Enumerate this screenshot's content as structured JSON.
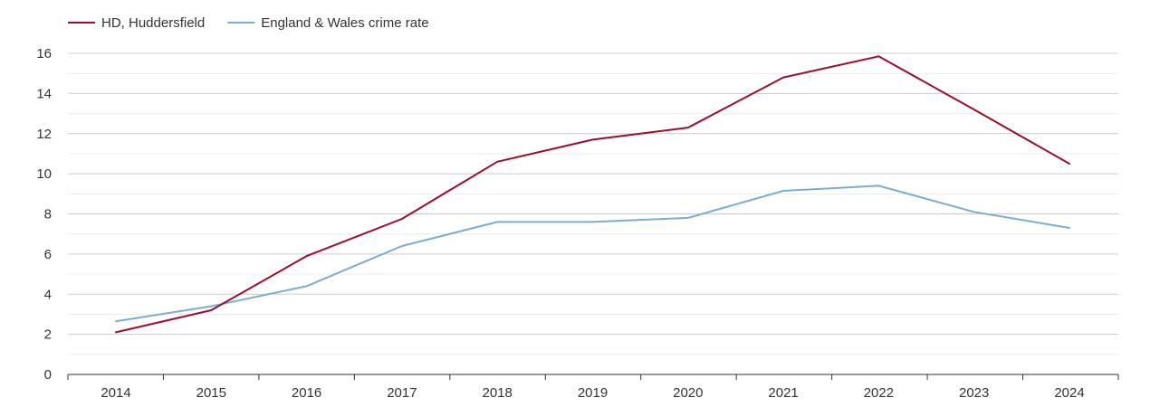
{
  "chart_data": {
    "type": "line",
    "x": [
      "2014",
      "2015",
      "2016",
      "2017",
      "2018",
      "2019",
      "2020",
      "2021",
      "2022",
      "2023",
      "2024"
    ],
    "series": [
      {
        "name": "HD, Huddersfield",
        "color": "#9b0e2e",
        "values": [
          2.1,
          3.2,
          5.9,
          7.75,
          10.6,
          11.7,
          12.3,
          14.8,
          15.85,
          13.2,
          10.5
        ]
      },
      {
        "name": "England & Wales crime rate",
        "color": "#7aadcf",
        "values": [
          2.65,
          3.4,
          4.4,
          6.4,
          7.6,
          7.6,
          7.8,
          9.15,
          9.4,
          8.1,
          7.3
        ]
      }
    ],
    "ylim": [
      0,
      16
    ],
    "yticks": [
      0,
      2,
      4,
      6,
      8,
      10,
      12,
      14,
      16
    ],
    "legend": "top-left",
    "grid": true
  }
}
